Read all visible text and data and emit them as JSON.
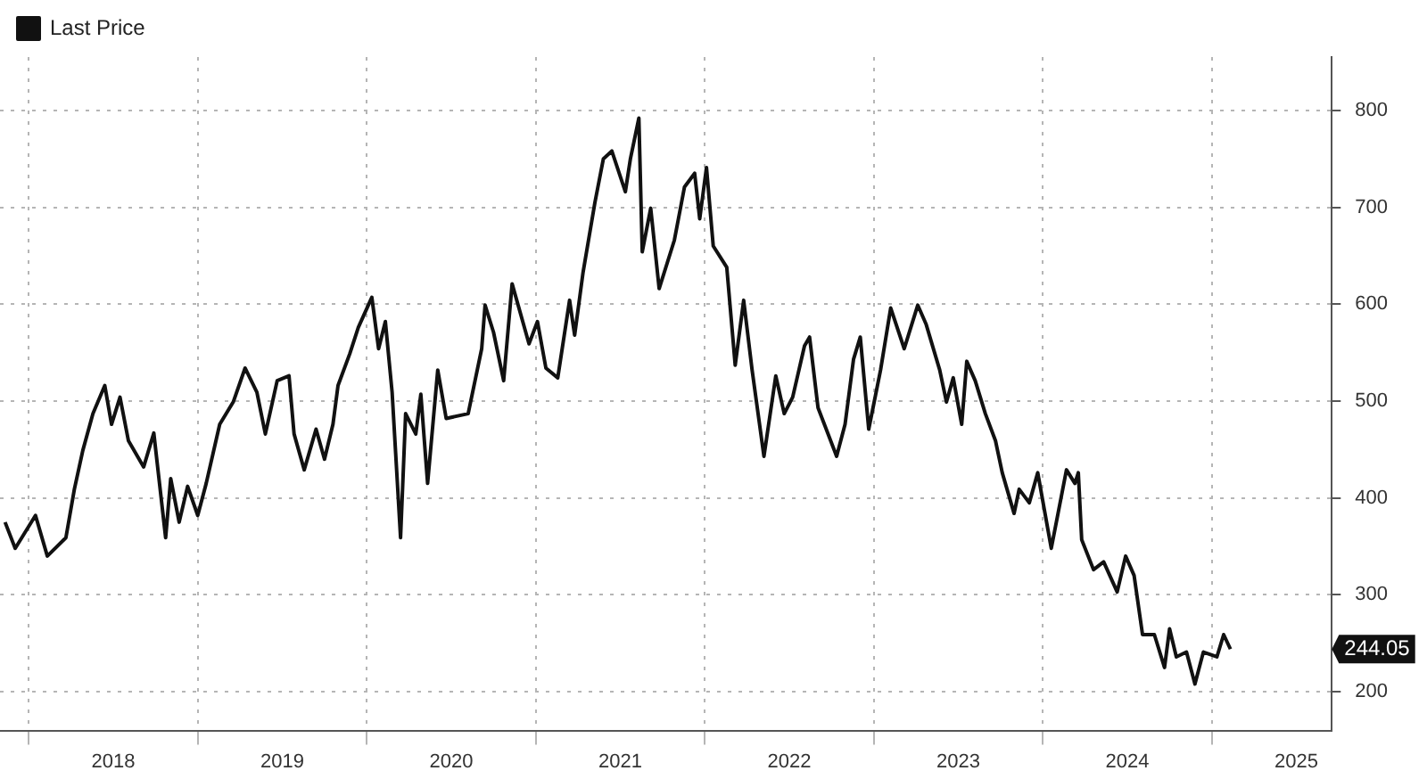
{
  "chart_data": {
    "type": "line",
    "x": [
      2017.86,
      2017.92,
      2018.04,
      2018.11,
      2018.22,
      2018.27,
      2018.32,
      2018.38,
      2018.45,
      2018.49,
      2018.54,
      2018.59,
      2018.68,
      2018.74,
      2018.81,
      2018.84,
      2018.89,
      2018.94,
      2019.0,
      2019.05,
      2019.13,
      2019.21,
      2019.28,
      2019.35,
      2019.4,
      2019.47,
      2019.54,
      2019.57,
      2019.63,
      2019.7,
      2019.75,
      2019.8,
      2019.83,
      2019.9,
      2019.95,
      2020.03,
      2020.07,
      2020.11,
      2020.15,
      2020.2,
      2020.23,
      2020.29,
      2020.32,
      2020.36,
      2020.42,
      2020.47,
      2020.6,
      2020.68,
      2020.7,
      2020.75,
      2020.81,
      2020.86,
      2020.96,
      2021.01,
      2021.06,
      2021.13,
      2021.2,
      2021.23,
      2021.28,
      2021.35,
      2021.4,
      2021.45,
      2021.53,
      2021.56,
      2021.61,
      2021.63,
      2021.68,
      2021.73,
      2021.82,
      2021.88,
      2021.94,
      2021.97,
      2022.01,
      2022.05,
      2022.13,
      2022.18,
      2022.23,
      2022.28,
      2022.35,
      2022.42,
      2022.47,
      2022.52,
      2022.59,
      2022.62,
      2022.67,
      2022.78,
      2022.83,
      2022.88,
      2022.92,
      2022.97,
      2023.04,
      2023.1,
      2023.18,
      2023.26,
      2023.31,
      2023.39,
      2023.43,
      2023.47,
      2023.52,
      2023.55,
      2023.6,
      2023.66,
      2023.72,
      2023.76,
      2023.83,
      2023.86,
      2023.92,
      2023.97,
      2024.01,
      2024.05,
      2024.09,
      2024.14,
      2024.19,
      2024.21,
      2024.23,
      2024.3,
      2024.36,
      2024.44,
      2024.49,
      2024.54,
      2024.59,
      2024.66,
      2024.72,
      2024.75,
      2024.79,
      2024.85,
      2024.9,
      2024.95,
      2025.03,
      2025.07,
      2025.11
    ],
    "series": [
      {
        "name": "Last Price",
        "color": "#111111",
        "values": [
          375,
          348,
          382,
          340,
          359,
          409,
          449,
          487,
          516,
          476,
          504,
          459,
          432,
          467,
          359,
          420,
          375,
          412,
          382,
          415,
          476,
          499,
          534,
          509,
          466,
          521,
          526,
          466,
          429,
          471,
          440,
          476,
          516,
          549,
          576,
          607,
          554,
          582,
          509,
          359,
          487,
          466,
          507,
          415,
          532,
          482,
          487,
          554,
          599,
          571,
          521,
          621,
          559,
          582,
          534,
          524,
          604,
          568,
          633,
          705,
          750,
          758,
          716,
          750,
          792,
          654,
          699,
          616,
          666,
          721,
          735,
          688,
          741,
          660,
          638,
          537,
          604,
          532,
          443,
          526,
          487,
          504,
          557,
          566,
          493,
          443,
          476,
          543,
          566,
          471,
          532,
          596,
          554,
          599,
          579,
          532,
          499,
          524,
          476,
          541,
          521,
          487,
          459,
          426,
          384,
          409,
          395,
          426,
          387,
          348,
          384,
          429,
          415,
          426,
          357,
          326,
          334,
          303,
          340,
          320,
          259,
          259,
          225,
          265,
          236,
          241,
          208,
          241,
          236,
          259,
          244
        ]
      }
    ],
    "xlim": [
      2017.83,
      2025.71
    ],
    "xticks": [
      {
        "value": 2018,
        "label": null
      },
      {
        "value": 2018.5,
        "label": "2018"
      },
      {
        "value": 2019,
        "label": null
      },
      {
        "value": 2019.5,
        "label": "2019"
      },
      {
        "value": 2020,
        "label": null
      },
      {
        "value": 2020.5,
        "label": "2020"
      },
      {
        "value": 2021,
        "label": null
      },
      {
        "value": 2021.5,
        "label": "2021"
      },
      {
        "value": 2022,
        "label": null
      },
      {
        "value": 2022.5,
        "label": "2022"
      },
      {
        "value": 2023,
        "label": null
      },
      {
        "value": 2023.5,
        "label": "2023"
      },
      {
        "value": 2024,
        "label": null
      },
      {
        "value": 2024.5,
        "label": "2024"
      },
      {
        "value": 2025,
        "label": null
      },
      {
        "value": 2025.5,
        "label": "2025"
      }
    ],
    "ylim": [
      160,
      855
    ],
    "yticks": [
      200,
      300,
      400,
      500,
      600,
      700,
      800
    ],
    "annotations": [
      "244.05"
    ],
    "grid": true,
    "legend": "top left",
    "marker": "none",
    "line_style": "solid"
  }
}
